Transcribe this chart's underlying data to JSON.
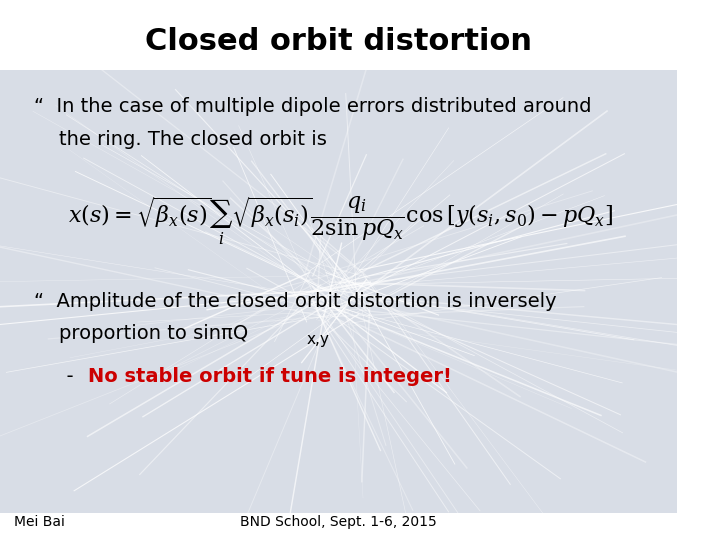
{
  "title": "Closed orbit distortion",
  "title_fontsize": 22,
  "title_fontweight": "bold",
  "title_color": "#000000",
  "bg_color": "#ffffff",
  "slide_bg_color": "#dce3ec",
  "bullet1_text1": "“  In the case of multiple dipole errors distributed around",
  "bullet1_text2": "    the ring. The closed orbit is",
  "formula": "x(s)= \\sqrt{\\beta_x(s)}\\sum_i \\sqrt{\\beta_x(s_i)}\\frac{q_i}{2\\sin p Q_x} \\cos\\left[y(s_i, s_0) - pQ_x\\right]",
  "bullet2_text1": "“  Amplitude of the closed orbit distortion is inversely",
  "bullet2_text2": "    proportion to sinπQ",
  "bullet2_sub": "x,y",
  "bullet3_dash": "  -  ",
  "bullet3_text": "No stable orbit if tune is integer!",
  "bullet3_color": "#cc0000",
  "footer_left": "Mei Bai",
  "footer_right": "BND School, Sept. 1-6, 2015",
  "footer_fontsize": 10,
  "text_fontsize": 14,
  "formula_fontsize": 16
}
